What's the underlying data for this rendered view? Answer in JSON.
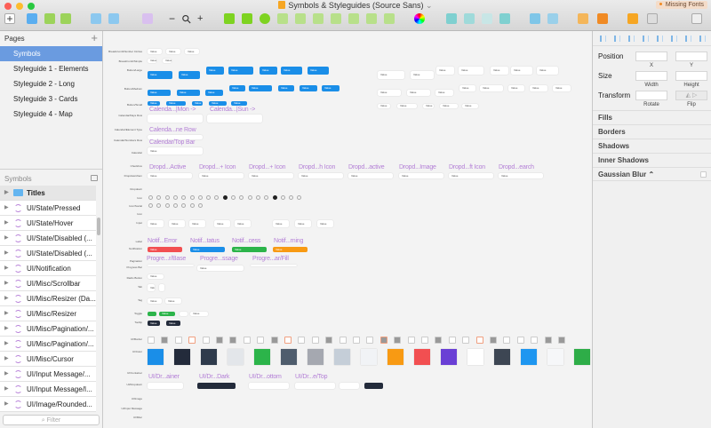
{
  "window": {
    "title": "Symbols & Styleguides (Source Sans)",
    "title_chevron": "⌄",
    "missing_fonts": "Missing Fonts"
  },
  "toolbar": {
    "icons": [
      "insert-icon",
      "artboard-icon",
      "group-icon",
      "ungroup-icon",
      "create-symbol-icon",
      "detach-icon",
      "rotate-copies-icon",
      "zoom-out-icon",
      "zoom-icon",
      "zoom-in-icon",
      "rectangle-icon",
      "rounded-rect-icon",
      "oval-icon",
      "union-icon",
      "subtract-icon",
      "intersect-icon",
      "scissors-icon",
      "difference-icon",
      "flatten-icon",
      "mask-icon",
      "color-wheel-icon",
      "forward-icon",
      "backward-icon",
      "front-icon",
      "back-icon",
      "align-up-icon",
      "align-down-icon",
      "edit-icon",
      "cloud-icon",
      "preview-icon",
      "view-icon",
      "export-icon"
    ],
    "zoom_minus": "−",
    "zoom_plus": "+",
    "insert_label": "+"
  },
  "pages": {
    "header": "Pages",
    "add": "+",
    "items": [
      {
        "label": "Symbols",
        "selected": true
      },
      {
        "label": "Styleguide 1 - Elements"
      },
      {
        "label": "Styleguide 2 - Long"
      },
      {
        "label": "Styleguide 3 - Cards"
      },
      {
        "label": "Styleguide 4 - Map"
      }
    ]
  },
  "layers": {
    "header": "Symbols",
    "items": [
      "Titles",
      "UI/State/Pressed",
      "UI/State/Hover",
      "UI/State/Disabled (...",
      "UI/State/Disabled (...",
      "UI/Notification",
      "UI/Misc/Scrollbar",
      "UI/Misc/Resizer (Da...",
      "UI/Misc/Resizer",
      "UI/Misc/Pagination/...",
      "UI/Misc/Pagination/...",
      "UI/Misc/Cursor",
      "UI/Input Message/...",
      "UI/Input Message/I...",
      "UI/Image/Rounded..."
    ],
    "filter_placeholder": "Filter"
  },
  "canvas": {
    "value_text": "Value",
    "row_labels": [
      "Breadcrumb/Number Circles",
      "Breadcrumb/Simple",
      "Button/Large",
      "Button/Medium",
      "Button/Small",
      "Calendar/Days Row",
      "Calendar/Element Type",
      "Calendar/Numbers Row",
      "Calendar",
      "Checkbox",
      "Dropdown/Item",
      "Dropdown",
      "Icon",
      "Icon/Social",
      "Icon",
      "Input",
      "Label",
      "Notification",
      "Pagination",
      "Progress Bar",
      "Radio Button",
      "Tab",
      "Tag",
      "Toggle",
      "Tooltip",
      "UI/Border",
      "UI/Color",
      "UI/Container",
      "UI/Dropdown",
      "UI/Image",
      "UI/Input Message",
      "UI/Misc"
    ],
    "overlay_labels": {
      "cal_mon": "Calenda...|Mon ->",
      "cal_sun": "Calenda...|Sun ->",
      "cal_row": "Calenda...ne Row",
      "cal_top": "Calendar/Top Bar",
      "dropdowns": [
        "Dropd...Active",
        "Dropd...+ Icon",
        "Dropd...+ Icon",
        "Dropd...h Icon",
        "Dropd...active",
        "Dropd...Image",
        "Dropd...ft Icon",
        "Dropd...earch"
      ],
      "notifs": [
        "Notif...Error",
        "Notif...tatus",
        "Notif...cess",
        "Notif...rning"
      ],
      "progress": [
        "Progre...r/Base",
        "Progre...ssage",
        "Progre...ar/Fill"
      ],
      "ui_dropdown": [
        "UI/Dr...ainer",
        "UI/Dr...Dark",
        "UI/Dr...ottom",
        "UI/Dr...e/Top"
      ]
    },
    "colors": [
      "#1a8ee8",
      "#232b3b",
      "#2f3b4c",
      "#e3e6ea",
      "#2cb44a",
      "#4f5d6d",
      "#a5a8b0",
      "#c5ced8",
      "#f1f3f6",
      "#f89a13",
      "#f24f51",
      "#6a3fd5",
      "#ffffff",
      "#3d4653",
      "#1e96f0",
      "#f6f7f9",
      "#2ead48"
    ]
  },
  "inspector": {
    "position": "Position",
    "x": "X",
    "y": "Y",
    "size": "Size",
    "width": "Width",
    "height": "Height",
    "transform": "Transform",
    "rotate": "Rotate",
    "flip": "Flip",
    "sections": [
      "Fills",
      "Borders",
      "Shadows",
      "Inner Shadows",
      "Gaussian Blur ⌃"
    ]
  }
}
